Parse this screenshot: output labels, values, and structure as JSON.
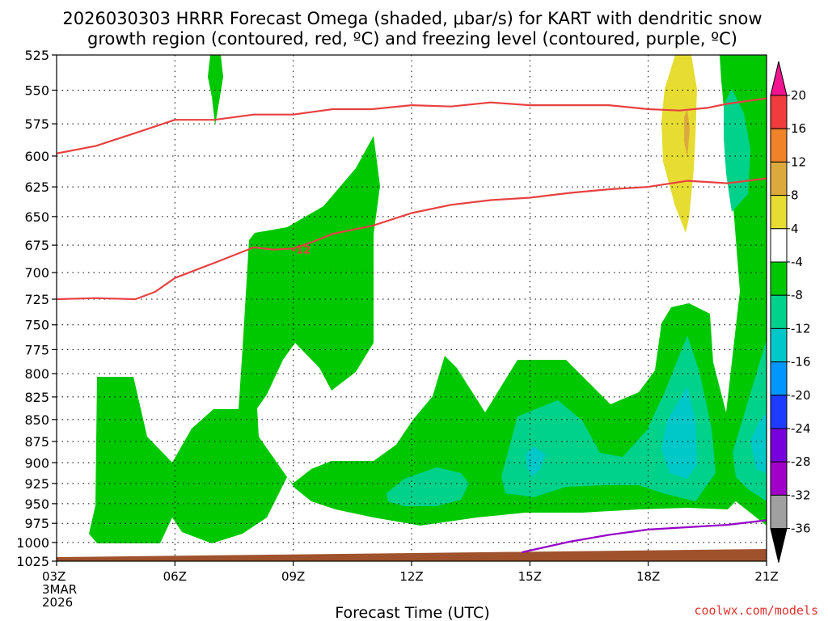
{
  "chart_data": {
    "type": "contour",
    "title_lines": [
      "2026030303 HRRR Forecast Omega (shaded, μbar/s) for KART with dendritic snow",
      "growth region (contoured, red, ºC) and freezing level (contoured, purple, ºC)"
    ],
    "xlabel": "Forecast Time (UTC)",
    "x_ticks": [
      "03Z",
      "06Z",
      "09Z",
      "12Z",
      "15Z",
      "18Z",
      "21Z"
    ],
    "x_tick_hours": [
      3,
      6,
      9,
      12,
      15,
      18,
      21
    ],
    "x_first_tick_extra": [
      "3MAR",
      "2026"
    ],
    "xlim": [
      3,
      21
    ],
    "y_ticks": [
      525,
      550,
      575,
      600,
      625,
      650,
      675,
      700,
      725,
      750,
      775,
      800,
      825,
      850,
      875,
      900,
      925,
      950,
      975,
      1000,
      1025
    ],
    "ylim": [
      525,
      1025
    ],
    "y_scale": "log-pressure",
    "colorbar": {
      "labels": [
        "20",
        "16",
        "12",
        "8",
        "4",
        "-4",
        "-8",
        "-12",
        "-16",
        "-20",
        "-24",
        "-28",
        "-32",
        "-36"
      ],
      "colors": [
        "#f01490",
        "#f03c3c",
        "#f08228",
        "#dcaa3c",
        "#e6dc32",
        "#ffffff",
        "#00c800",
        "#00d28c",
        "#00c8c8",
        "#0096ff",
        "#1e3cff",
        "#7800dc",
        "#a000c8",
        "#a0a0a0",
        "#000000"
      ]
    },
    "dgz_contours": [
      {
        "label": "",
        "points": [
          [
            3,
            598
          ],
          [
            4,
            592
          ],
          [
            5,
            582
          ],
          [
            6,
            572
          ],
          [
            7,
            572
          ],
          [
            8,
            568
          ],
          [
            9,
            568
          ],
          [
            10,
            564
          ],
          [
            11,
            564
          ],
          [
            12,
            561
          ],
          [
            13,
            562
          ],
          [
            14,
            559
          ],
          [
            15,
            561
          ],
          [
            16,
            561
          ],
          [
            17,
            561
          ],
          [
            18,
            564
          ],
          [
            18.8,
            565
          ],
          [
            19.5,
            563
          ],
          [
            20,
            560
          ],
          [
            21,
            556
          ]
        ]
      },
      {
        "label": "-12",
        "points": [
          [
            3,
            725
          ],
          [
            4,
            724
          ],
          [
            5,
            725
          ],
          [
            5.5,
            718
          ],
          [
            6,
            705
          ],
          [
            7,
            691
          ],
          [
            8,
            677
          ],
          [
            8.5,
            679
          ],
          [
            9,
            678
          ],
          [
            9.5,
            672
          ],
          [
            10,
            665
          ],
          [
            11,
            658
          ],
          [
            12,
            647
          ],
          [
            13,
            640
          ],
          [
            14,
            636
          ],
          [
            15,
            634
          ],
          [
            16,
            630
          ],
          [
            17,
            627
          ],
          [
            18,
            625
          ],
          [
            19,
            620
          ],
          [
            20,
            622
          ],
          [
            21,
            618
          ]
        ]
      }
    ],
    "freezing_level": {
      "color": "#9600c8",
      "points": [
        [
          14.8,
          1013
        ],
        [
          15.4,
          1006
        ],
        [
          16,
          999
        ],
        [
          17,
          990
        ],
        [
          18,
          983
        ],
        [
          19,
          980
        ],
        [
          20,
          977
        ],
        [
          21,
          971
        ]
      ]
    },
    "ground_color": "#a0522d",
    "credit": "coolwx.com/models"
  }
}
